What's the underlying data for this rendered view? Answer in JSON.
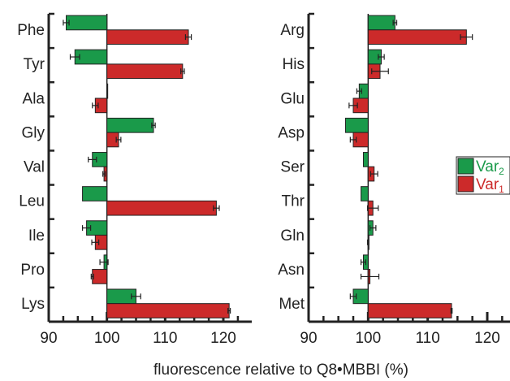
{
  "chart_data": [
    {
      "type": "bar",
      "orientation": "horizontal",
      "categories": [
        "Phe",
        "Tyr",
        "Ala",
        "Gly",
        "Val",
        "Leu",
        "Ile",
        "Pro",
        "Lys"
      ],
      "series": [
        {
          "name": "Var2",
          "color": "#1a9a4a",
          "values": [
            93,
            94.5,
            100,
            108,
            97.5,
            95.8,
            96.5,
            99.5,
            105
          ],
          "errors": [
            0.5,
            0.8,
            0,
            0.3,
            0.7,
            0,
            0.7,
            0.7,
            0.8
          ]
        },
        {
          "name": "Var1",
          "color": "#cc2a2a",
          "values": [
            114,
            113,
            98,
            102,
            99.5,
            118.8,
            98,
            97.5,
            121
          ],
          "errors": [
            0.5,
            0.3,
            0.5,
            0.4,
            0.2,
            0.5,
            0.6,
            0.2,
            0.2
          ]
        }
      ],
      "xlim": [
        90,
        125
      ],
      "xticks": [
        "90",
        "100",
        "110",
        "120"
      ],
      "baseline": 100
    },
    {
      "type": "bar",
      "orientation": "horizontal",
      "categories": [
        "Arg",
        "His",
        "Glu",
        "Asp",
        "Ser",
        "Thr",
        "Gln",
        "Asn",
        "Met"
      ],
      "series": [
        {
          "name": "Var2",
          "color": "#1a9a4a",
          "values": [
            104.5,
            102.2,
            98.5,
            96.2,
            99.2,
            98.8,
            100.8,
            99.2,
            97.5
          ],
          "errors": [
            0.3,
            0.5,
            0.4,
            0,
            0,
            0,
            0.5,
            0.4,
            0.5
          ]
        },
        {
          "name": "Var1",
          "color": "#cc2a2a",
          "values": [
            116.5,
            102,
            97.5,
            97.5,
            101,
            100.8,
            100,
            100.3,
            114
          ],
          "errors": [
            1.0,
            1.4,
            0.7,
            0.5,
            0.6,
            0.9,
            0.1,
            1.5,
            0.1
          ]
        }
      ],
      "xlim": [
        90,
        125
      ],
      "xticks": [
        "90",
        "100",
        "110",
        "120"
      ],
      "baseline": 100
    }
  ],
  "xlabel": "fluorescence relative to Q8•MBBI (%)",
  "legend": {
    "position": "right",
    "items": [
      {
        "label": "Var",
        "subscript": "2",
        "color": "#1a9a4a"
      },
      {
        "label": "Var",
        "subscript": "1",
        "color": "#cc2a2a"
      }
    ]
  }
}
